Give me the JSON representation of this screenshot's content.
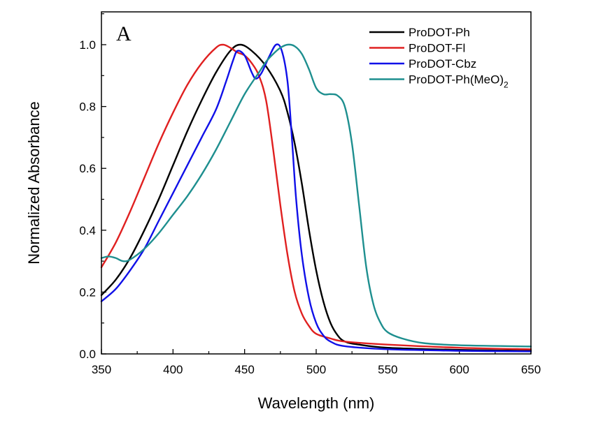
{
  "chart_data": {
    "type": "line",
    "panel_label": "A",
    "xlabel": "Wavelength (nm)",
    "ylabel": "Normalized Absorbance",
    "xlim": [
      350,
      650
    ],
    "ylim": [
      0.0,
      1.1
    ],
    "x_ticks": [
      350,
      400,
      450,
      500,
      550,
      600,
      650
    ],
    "y_ticks": [
      0.0,
      0.2,
      0.4,
      0.6,
      0.8,
      1.0
    ],
    "x_tick_labels": [
      "350",
      "400",
      "450",
      "500",
      "550",
      "600",
      "650"
    ],
    "y_tick_labels": [
      "0.0",
      "0.2",
      "0.4",
      "0.6",
      "0.8",
      "1.0"
    ],
    "grid": false,
    "legend_position": "top-right",
    "series": [
      {
        "name": "ProDOT-Ph",
        "color": "#000000",
        "points": [
          [
            350,
            0.19
          ],
          [
            360,
            0.24
          ],
          [
            370,
            0.31
          ],
          [
            380,
            0.4
          ],
          [
            390,
            0.5
          ],
          [
            400,
            0.61
          ],
          [
            410,
            0.72
          ],
          [
            420,
            0.82
          ],
          [
            430,
            0.91
          ],
          [
            440,
            0.98
          ],
          [
            447,
            1.0
          ],
          [
            455,
            0.98
          ],
          [
            465,
            0.93
          ],
          [
            475,
            0.85
          ],
          [
            480,
            0.78
          ],
          [
            485,
            0.68
          ],
          [
            490,
            0.55
          ],
          [
            495,
            0.4
          ],
          [
            500,
            0.27
          ],
          [
            505,
            0.17
          ],
          [
            510,
            0.1
          ],
          [
            515,
            0.06
          ],
          [
            520,
            0.04
          ],
          [
            530,
            0.03
          ],
          [
            550,
            0.02
          ],
          [
            600,
            0.013
          ],
          [
            650,
            0.01
          ]
        ]
      },
      {
        "name": "ProDOT-Fl",
        "color": "#e02020",
        "points": [
          [
            350,
            0.28
          ],
          [
            360,
            0.36
          ],
          [
            370,
            0.46
          ],
          [
            380,
            0.57
          ],
          [
            390,
            0.68
          ],
          [
            400,
            0.78
          ],
          [
            410,
            0.87
          ],
          [
            420,
            0.94
          ],
          [
            430,
            0.99
          ],
          [
            435,
            1.0
          ],
          [
            440,
            0.99
          ],
          [
            445,
            0.975
          ],
          [
            450,
            0.965
          ],
          [
            455,
            0.94
          ],
          [
            460,
            0.9
          ],
          [
            465,
            0.82
          ],
          [
            470,
            0.66
          ],
          [
            475,
            0.48
          ],
          [
            480,
            0.32
          ],
          [
            485,
            0.2
          ],
          [
            490,
            0.13
          ],
          [
            495,
            0.09
          ],
          [
            500,
            0.065
          ],
          [
            510,
            0.05
          ],
          [
            520,
            0.04
          ],
          [
            550,
            0.03
          ],
          [
            600,
            0.02
          ],
          [
            650,
            0.015
          ]
        ]
      },
      {
        "name": "ProDOT-Cbz",
        "color": "#1010e8",
        "points": [
          [
            350,
            0.17
          ],
          [
            360,
            0.21
          ],
          [
            370,
            0.27
          ],
          [
            380,
            0.34
          ],
          [
            390,
            0.43
          ],
          [
            400,
            0.52
          ],
          [
            410,
            0.61
          ],
          [
            420,
            0.7
          ],
          [
            430,
            0.79
          ],
          [
            437,
            0.88
          ],
          [
            442,
            0.95
          ],
          [
            445,
            0.98
          ],
          [
            450,
            0.965
          ],
          [
            455,
            0.91
          ],
          [
            458,
            0.89
          ],
          [
            462,
            0.91
          ],
          [
            467,
            0.96
          ],
          [
            472,
            1.0
          ],
          [
            476,
            0.98
          ],
          [
            480,
            0.88
          ],
          [
            483,
            0.7
          ],
          [
            486,
            0.5
          ],
          [
            490,
            0.32
          ],
          [
            495,
            0.18
          ],
          [
            500,
            0.1
          ],
          [
            505,
            0.06
          ],
          [
            510,
            0.04
          ],
          [
            520,
            0.025
          ],
          [
            550,
            0.015
          ],
          [
            600,
            0.01
          ],
          [
            650,
            0.008
          ]
        ]
      },
      {
        "name": "ProDOT-Ph(MeO)2",
        "legend_label": "ProDOT-Ph(MeO)",
        "legend_subscript": "2",
        "color": "#1e8f8f",
        "points": [
          [
            350,
            0.31
          ],
          [
            355,
            0.315
          ],
          [
            360,
            0.31
          ],
          [
            365,
            0.3
          ],
          [
            370,
            0.305
          ],
          [
            380,
            0.34
          ],
          [
            390,
            0.39
          ],
          [
            400,
            0.45
          ],
          [
            410,
            0.51
          ],
          [
            420,
            0.58
          ],
          [
            430,
            0.66
          ],
          [
            440,
            0.75
          ],
          [
            450,
            0.84
          ],
          [
            460,
            0.91
          ],
          [
            465,
            0.945
          ],
          [
            470,
            0.97
          ],
          [
            475,
            0.99
          ],
          [
            480,
            1.0
          ],
          [
            485,
            0.995
          ],
          [
            490,
            0.97
          ],
          [
            495,
            0.92
          ],
          [
            500,
            0.86
          ],
          [
            505,
            0.84
          ],
          [
            510,
            0.84
          ],
          [
            515,
            0.835
          ],
          [
            520,
            0.8
          ],
          [
            525,
            0.68
          ],
          [
            530,
            0.48
          ],
          [
            535,
            0.28
          ],
          [
            540,
            0.16
          ],
          [
            545,
            0.1
          ],
          [
            550,
            0.07
          ],
          [
            560,
            0.05
          ],
          [
            575,
            0.035
          ],
          [
            600,
            0.028
          ],
          [
            650,
            0.024
          ]
        ]
      }
    ]
  }
}
